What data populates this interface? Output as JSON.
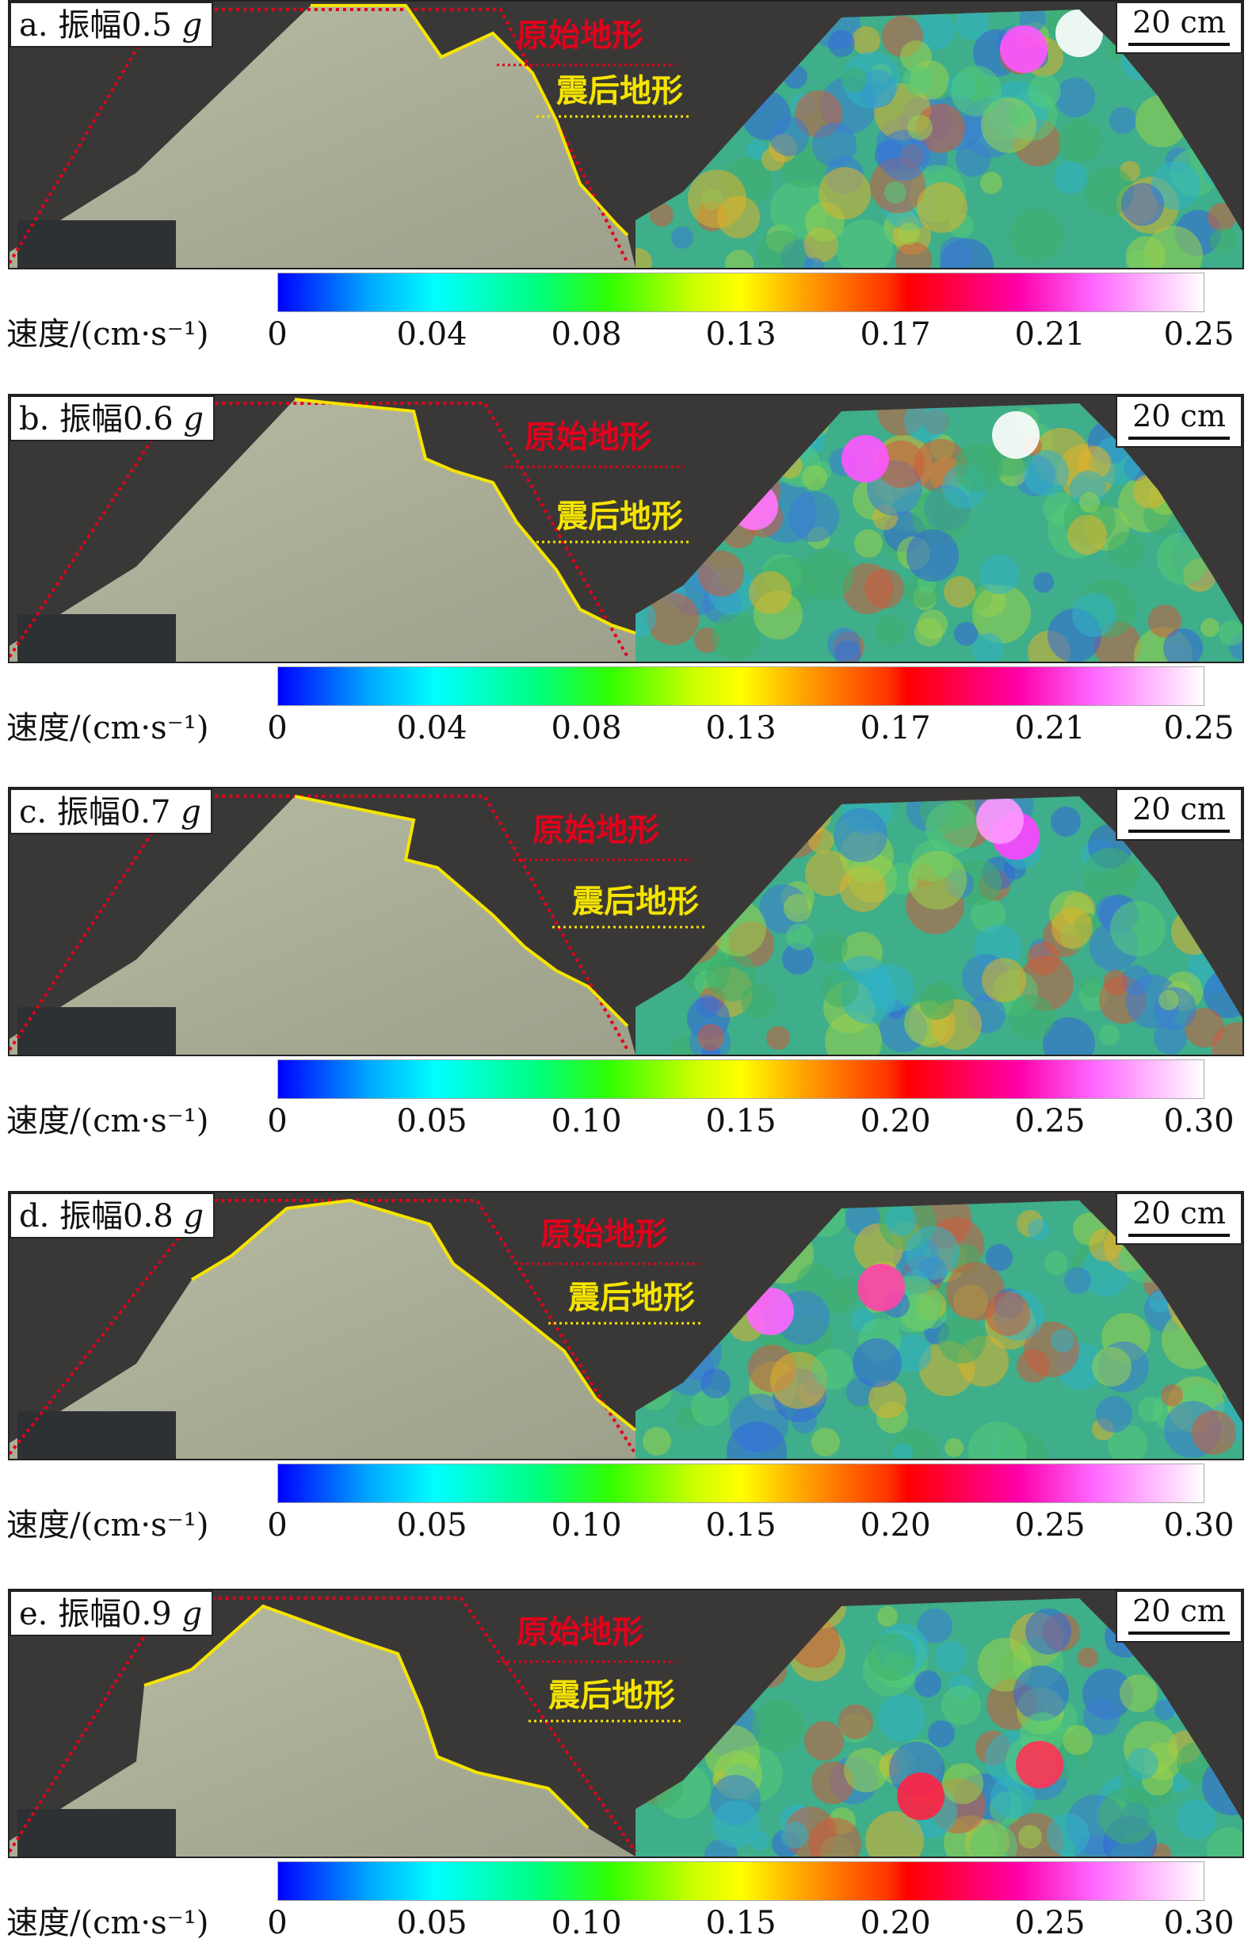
{
  "legend": {
    "original_terrain": "原始地形",
    "post_quake_terrain": "震后地形"
  },
  "scale_bar_label": "20 cm",
  "colorbar_title_cn": "速度/",
  "colorbar_title_unit": "(cm·s⁻¹)",
  "panels": [
    {
      "label_prefix": "a. 振幅0.5 ",
      "label_unit": "g",
      "ticks": [
        "0",
        "0.04",
        "0.08",
        "0.13",
        "0.17",
        "0.21",
        "0.25"
      ]
    },
    {
      "label_prefix": "b. 振幅0.6 ",
      "label_unit": "g",
      "ticks": [
        "0",
        "0.04",
        "0.08",
        "0.13",
        "0.17",
        "0.21",
        "0.25"
      ]
    },
    {
      "label_prefix": "c. 振幅0.7 ",
      "label_unit": "g",
      "ticks": [
        "0",
        "0.05",
        "0.10",
        "0.15",
        "0.20",
        "0.25",
        "0.30"
      ]
    },
    {
      "label_prefix": "d. 振幅0.8 ",
      "label_unit": "g",
      "ticks": [
        "0",
        "0.05",
        "0.10",
        "0.15",
        "0.20",
        "0.25",
        "0.30"
      ]
    },
    {
      "label_prefix": "e. 振幅0.9 ",
      "label_unit": "g",
      "ticks": [
        "0",
        "0.05",
        "0.10",
        "0.15",
        "0.20",
        "0.25",
        "0.30"
      ]
    }
  ],
  "colors": {
    "original_terrain": "#e3001b",
    "post_quake_terrain": "#f5e400",
    "background": "#3a3836"
  }
}
